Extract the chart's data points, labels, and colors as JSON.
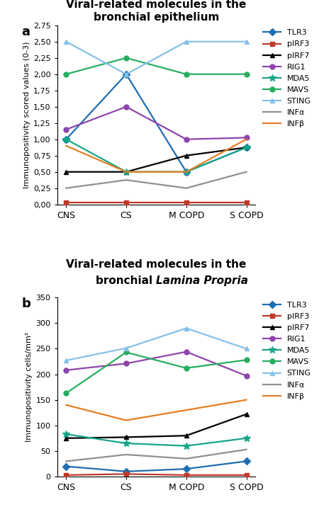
{
  "categories": [
    "CNS",
    "CS",
    "M COPD",
    "S COPD"
  ],
  "panel_a": {
    "title_line1": "Viral-related molecules in the",
    "title_line2": "bronchial epithelium",
    "ylabel": "Immunopositivity scored values (0-3)",
    "label": "a",
    "ylim": [
      0.0,
      2.75
    ],
    "yticks": [
      0.0,
      0.25,
      0.5,
      0.75,
      1.0,
      1.25,
      1.5,
      1.75,
      2.0,
      2.25,
      2.5,
      2.75
    ],
    "ytick_labels": [
      "0,00",
      "0,25",
      "0,50",
      "0,75",
      "1,00",
      "1,25",
      "1,50",
      "1,75",
      "2,00",
      "2,25",
      "2,50",
      "2,75"
    ],
    "series": {
      "TLR3": {
        "values": [
          1.0,
          2.0,
          0.5,
          0.875
        ],
        "color": "#1F6EB0",
        "marker": "D",
        "linestyle": "-"
      },
      "pIRF3": {
        "values": [
          0.03,
          0.03,
          0.03,
          0.03
        ],
        "color": "#C0392B",
        "marker": "s",
        "linestyle": "-"
      },
      "pIRF7": {
        "values": [
          0.5,
          0.5,
          0.75,
          0.875
        ],
        "color": "#000000",
        "marker": "^",
        "linestyle": "-"
      },
      "RIG1": {
        "values": [
          1.15,
          1.5,
          1.0,
          1.025
        ],
        "color": "#8E44AD",
        "marker": "o",
        "linestyle": "-"
      },
      "MDA5": {
        "values": [
          1.0,
          0.5,
          0.5,
          0.875
        ],
        "color": "#17A589",
        "marker": "*",
        "linestyle": "-"
      },
      "MAVS": {
        "values": [
          2.0,
          2.25,
          2.0,
          2.0
        ],
        "color": "#27AE60",
        "marker": "o",
        "linestyle": "-"
      },
      "STING": {
        "values": [
          2.5,
          2.0,
          2.5,
          2.5
        ],
        "color": "#85C1E9",
        "marker": "^",
        "linestyle": "-"
      },
      "INFa": {
        "values": [
          0.25,
          0.375,
          0.25,
          0.5
        ],
        "color": "#909090",
        "marker": "None",
        "linestyle": "-"
      },
      "INFb": {
        "values": [
          0.9,
          0.5,
          0.5,
          1.0
        ],
        "color": "#E67E22",
        "marker": "None",
        "linestyle": "-"
      }
    }
  },
  "panel_b": {
    "title_line1": "Viral-related molecules in the",
    "title_line2_normal": "bronchial ",
    "title_line2_italic": "Lamina Propria",
    "ylabel": "Immunopositivity cells/mm²",
    "label": "b",
    "ylim": [
      0,
      350
    ],
    "yticks": [
      0,
      50,
      100,
      150,
      200,
      250,
      300,
      350
    ],
    "ytick_labels": [
      "0",
      "50",
      "100",
      "150",
      "200",
      "250",
      "300",
      "350"
    ],
    "series": {
      "TLR3": {
        "values": [
          20,
          10,
          15,
          30
        ],
        "color": "#1F6EB0",
        "marker": "D",
        "linestyle": "-"
      },
      "pIRF3": {
        "values": [
          3,
          5,
          3,
          3
        ],
        "color": "#C0392B",
        "marker": "s",
        "linestyle": "-"
      },
      "pIRF7": {
        "values": [
          75,
          77,
          80,
          122
        ],
        "color": "#000000",
        "marker": "^",
        "linestyle": "-"
      },
      "RIG1": {
        "values": [
          208,
          221,
          244,
          197
        ],
        "color": "#8E44AD",
        "marker": "o",
        "linestyle": "-"
      },
      "MDA5": {
        "values": [
          83,
          65,
          60,
          75
        ],
        "color": "#17A589",
        "marker": "*",
        "linestyle": "-"
      },
      "MAVS": {
        "values": [
          163,
          243,
          212,
          228
        ],
        "color": "#27AE60",
        "marker": "o",
        "linestyle": "-"
      },
      "STING": {
        "values": [
          227,
          251,
          290,
          250
        ],
        "color": "#85C1E9",
        "marker": "^",
        "linestyle": "-"
      },
      "INFa": {
        "values": [
          30,
          43,
          35,
          53
        ],
        "color": "#909090",
        "marker": "None",
        "linestyle": "-"
      },
      "INFb": {
        "values": [
          140,
          110,
          130,
          150
        ],
        "color": "#E67E22",
        "marker": "None",
        "linestyle": "-"
      }
    }
  },
  "legend_labels": [
    "TLR3",
    "pIRF3",
    "pIRF7",
    "RIG1",
    "MDA5",
    "MAVS",
    "STING",
    "INFα",
    "INFβ"
  ]
}
